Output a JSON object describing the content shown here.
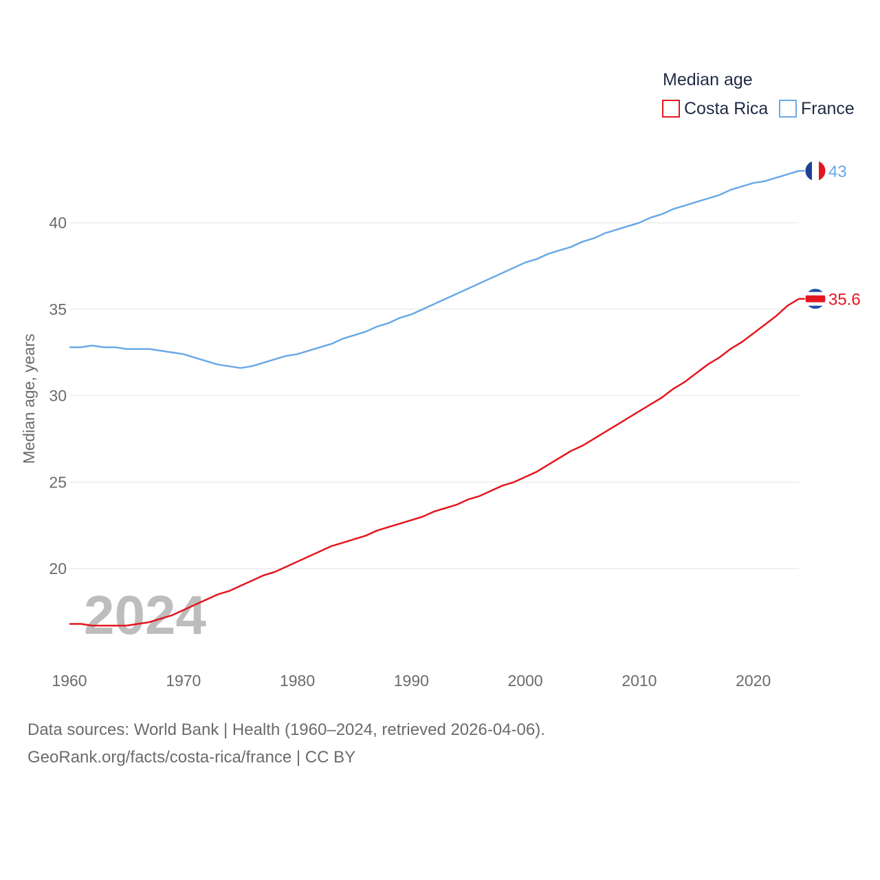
{
  "chart_data": {
    "type": "line",
    "title": "Median age",
    "xlabel": "",
    "ylabel": "Median age, years",
    "xlim": [
      1960,
      2024
    ],
    "ylim": [
      15,
      44
    ],
    "y_ticks": [
      20,
      25,
      30,
      35,
      40
    ],
    "x_ticks": [
      1960,
      1970,
      1980,
      1990,
      2000,
      2010,
      2020
    ],
    "current_year": "2024",
    "legend_placement": "top-right",
    "x": [
      1960,
      1961,
      1962,
      1963,
      1964,
      1965,
      1966,
      1967,
      1968,
      1969,
      1970,
      1971,
      1972,
      1973,
      1974,
      1975,
      1976,
      1977,
      1978,
      1979,
      1980,
      1981,
      1982,
      1983,
      1984,
      1985,
      1986,
      1987,
      1988,
      1989,
      1990,
      1991,
      1992,
      1993,
      1994,
      1995,
      1996,
      1997,
      1998,
      1999,
      2000,
      2001,
      2002,
      2003,
      2004,
      2005,
      2006,
      2007,
      2008,
      2009,
      2010,
      2011,
      2012,
      2013,
      2014,
      2015,
      2016,
      2017,
      2018,
      2019,
      2020,
      2021,
      2022,
      2023,
      2024
    ],
    "series": [
      {
        "name": "Costa Rica",
        "color": "#e3161f",
        "end_label": "35.6",
        "flag": "costa-rica-flag-icon",
        "values": [
          16.8,
          16.8,
          16.7,
          16.7,
          16.7,
          16.7,
          16.8,
          16.9,
          17.1,
          17.3,
          17.6,
          17.9,
          18.2,
          18.5,
          18.7,
          19.0,
          19.3,
          19.6,
          19.8,
          20.1,
          20.4,
          20.7,
          21.0,
          21.3,
          21.5,
          21.7,
          21.9,
          22.2,
          22.4,
          22.6,
          22.8,
          23.0,
          23.3,
          23.5,
          23.7,
          24.0,
          24.2,
          24.5,
          24.8,
          25.0,
          25.3,
          25.6,
          26.0,
          26.4,
          26.8,
          27.1,
          27.5,
          27.9,
          28.3,
          28.7,
          29.1,
          29.5,
          29.9,
          30.4,
          30.8,
          31.3,
          31.8,
          32.2,
          32.7,
          33.1,
          33.6,
          34.1,
          34.6,
          35.2,
          35.6
        ]
      },
      {
        "name": "France",
        "color": "#6aa9e6",
        "end_label": "43",
        "flag": "france-flag-icon",
        "values": [
          32.8,
          32.8,
          32.9,
          32.8,
          32.8,
          32.7,
          32.7,
          32.7,
          32.6,
          32.5,
          32.4,
          32.2,
          32.0,
          31.8,
          31.7,
          31.6,
          31.7,
          31.9,
          32.1,
          32.3,
          32.4,
          32.6,
          32.8,
          33.0,
          33.3,
          33.5,
          33.7,
          34.0,
          34.2,
          34.5,
          34.7,
          35.0,
          35.3,
          35.6,
          35.9,
          36.2,
          36.5,
          36.8,
          37.1,
          37.4,
          37.7,
          37.9,
          38.2,
          38.4,
          38.6,
          38.9,
          39.1,
          39.4,
          39.6,
          39.8,
          40.0,
          40.3,
          40.5,
          40.8,
          41.0,
          41.2,
          41.4,
          41.6,
          41.9,
          42.1,
          42.3,
          42.4,
          42.6,
          42.8,
          43.0
        ]
      }
    ]
  },
  "footer": {
    "source_line": "Data sources: World Bank | Health (1960–2024, retrieved 2026-04-06).",
    "link_line": "GeoRank.org/facts/costa-rica/france | CC BY"
  }
}
